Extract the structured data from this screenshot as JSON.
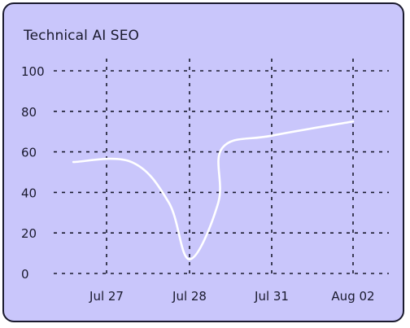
{
  "chart_data": {
    "type": "line",
    "title": "Technical AI SEO",
    "xlabel": "",
    "ylabel": "",
    "categories": [
      "Jul 27",
      "Jul 28",
      "Jul 31",
      "Aug 02"
    ],
    "ylim": [
      0,
      100
    ],
    "yticks": [
      0,
      20,
      40,
      60,
      80,
      100
    ],
    "grid": true,
    "series": [
      {
        "color": "#ffffff",
        "points": [
          {
            "x": "Jul 26.6",
            "y": 55
          },
          {
            "x": "Jul 27.3",
            "y": 55
          },
          {
            "x": "Jul 27.75",
            "y": 35
          },
          {
            "x": "Jul 28",
            "y": 7
          },
          {
            "x": "Jul 28.35",
            "y": 35
          },
          {
            "x": "Jul 28.4",
            "y": 62
          },
          {
            "x": "Jul 31",
            "y": 68
          },
          {
            "x": "Aug 02",
            "y": 75
          }
        ]
      }
    ]
  },
  "colors": {
    "background": "#c9c6fb",
    "ink": "#1a1a2e",
    "line": "#ffffff"
  }
}
